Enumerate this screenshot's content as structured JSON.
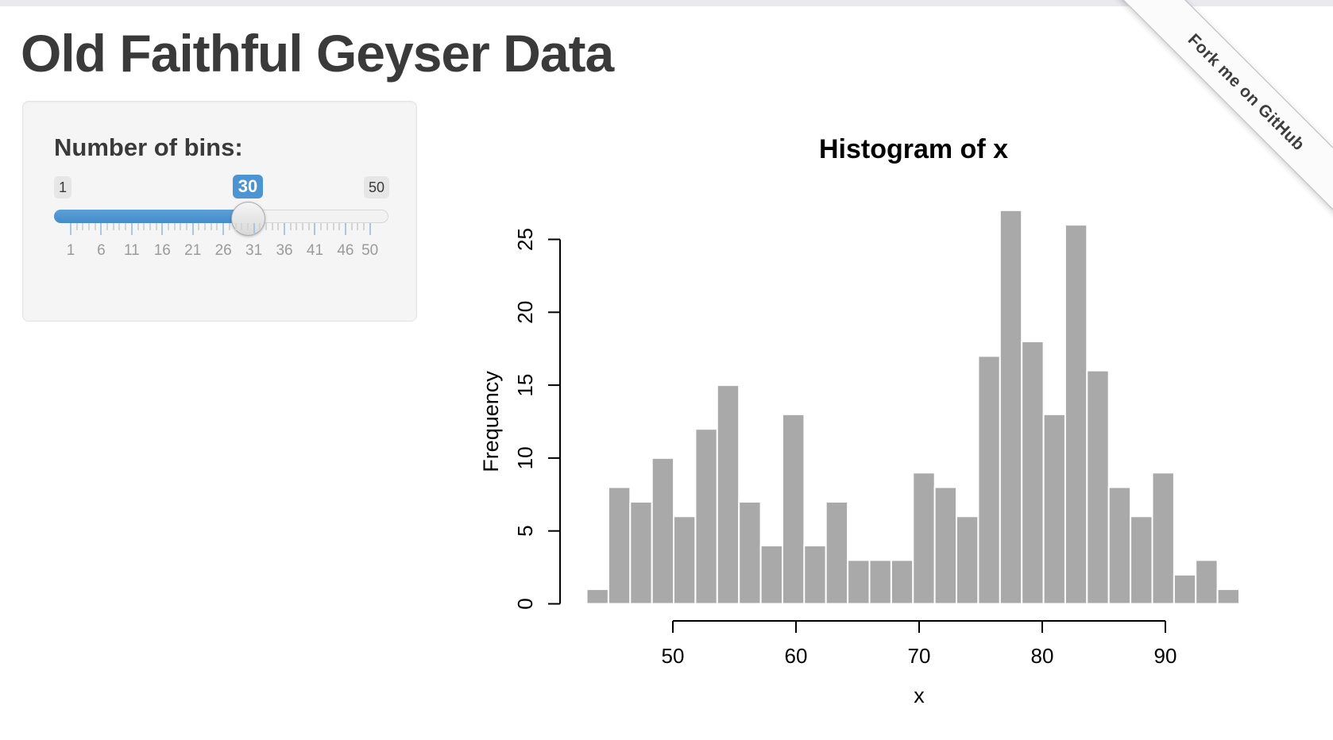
{
  "page": {
    "title": "Old Faithful Geyser Data",
    "background_color": "#ffffff",
    "top_strip_color": "#e9e9ee"
  },
  "ribbon": {
    "label": "Fork me on GitHub"
  },
  "sidebar": {
    "bins_label": "Number of bins:",
    "slider": {
      "min": 1,
      "max": 50,
      "value": 30,
      "min_label": "1",
      "max_label": "50",
      "value_label": "30",
      "tick_labels": [
        1,
        6,
        11,
        16,
        21,
        26,
        31,
        36,
        41,
        46,
        50
      ],
      "accent_color": "#4d94d2"
    }
  },
  "chart_data": {
    "type": "bar",
    "subtype": "histogram",
    "title": "Histogram of x",
    "xlabel": "x",
    "ylabel": "Frequency",
    "bin_start": 43,
    "bin_width": 1.7666667,
    "counts": [
      1,
      8,
      7,
      10,
      6,
      12,
      15,
      7,
      4,
      13,
      4,
      7,
      3,
      3,
      3,
      9,
      8,
      6,
      17,
      27,
      18,
      13,
      26,
      16,
      8,
      6,
      9,
      2,
      3,
      1
    ],
    "x_ticks": [
      50,
      60,
      70,
      80,
      90
    ],
    "y_ticks": [
      0,
      5,
      10,
      15,
      20,
      25
    ],
    "xlim": [
      43,
      96
    ],
    "ylim": [
      0,
      27
    ],
    "grid": false,
    "legend": false,
    "bar_fill": "#a9a9a9",
    "bar_border": "#ffffff",
    "axis_color": "#000000"
  }
}
